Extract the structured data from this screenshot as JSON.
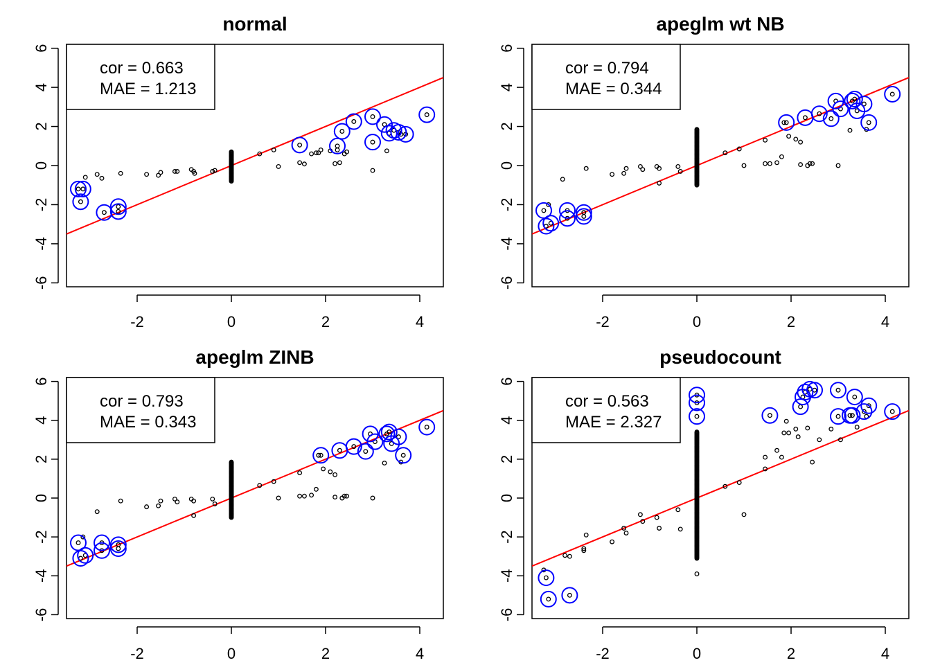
{
  "chart_data": [
    {
      "type": "scatter",
      "title": "normal",
      "xlim": [
        -3.5,
        4.5
      ],
      "ylim": [
        -6.2,
        6.2
      ],
      "xticks": [
        -2,
        0,
        2,
        4
      ],
      "yticks": [
        -6,
        -4,
        -2,
        0,
        2,
        4,
        6
      ],
      "annotation": {
        "cor": "cor = 0.663",
        "mae": "MAE = 1.213"
      },
      "fit_line": {
        "intercept": 0,
        "slope": 1,
        "color": "#ff0000"
      },
      "zero_cluster": {
        "x": 0,
        "ymin": -0.8,
        "ymax": 0.7
      },
      "points": [
        [
          -3.25,
          -1.2
        ],
        [
          -3.15,
          -1.2
        ],
        [
          -3.2,
          -1.85
        ],
        [
          -3.1,
          -0.6
        ],
        [
          -2.85,
          -0.45
        ],
        [
          -2.75,
          -0.65
        ],
        [
          -2.7,
          -2.4
        ],
        [
          -2.4,
          -2.1
        ],
        [
          -2.4,
          -2.35
        ],
        [
          -2.35,
          -0.4
        ],
        [
          -1.8,
          -0.45
        ],
        [
          -1.55,
          -0.5
        ],
        [
          -1.5,
          -0.35
        ],
        [
          -1.2,
          -0.3
        ],
        [
          -1.15,
          -0.3
        ],
        [
          -0.85,
          -0.2
        ],
        [
          -0.8,
          -0.3
        ],
        [
          -0.78,
          -0.4
        ],
        [
          -0.4,
          -0.3
        ],
        [
          -0.35,
          -0.25
        ],
        [
          0.6,
          0.6
        ],
        [
          0.9,
          0.8
        ],
        [
          1.0,
          -0.05
        ],
        [
          1.45,
          1.05
        ],
        [
          1.45,
          0.15
        ],
        [
          1.55,
          0.08
        ],
        [
          1.7,
          0.6
        ],
        [
          1.8,
          0.65
        ],
        [
          1.85,
          0.65
        ],
        [
          1.9,
          0.8
        ],
        [
          2.1,
          0.75
        ],
        [
          2.2,
          0.1
        ],
        [
          2.25,
          1.0
        ],
        [
          2.25,
          0.8
        ],
        [
          2.3,
          0.15
        ],
        [
          2.35,
          1.75
        ],
        [
          2.4,
          0.6
        ],
        [
          2.45,
          0.7
        ],
        [
          2.6,
          2.25
        ],
        [
          3.0,
          2.5
        ],
        [
          3.0,
          1.2
        ],
        [
          3.0,
          -0.25
        ],
        [
          3.25,
          2.1
        ],
        [
          3.3,
          0.75
        ],
        [
          3.35,
          1.65
        ],
        [
          3.45,
          1.8
        ],
        [
          3.55,
          1.7
        ],
        [
          3.6,
          1.6
        ],
        [
          3.7,
          1.6
        ],
        [
          4.15,
          2.6
        ]
      ],
      "highlighted": [
        [
          -3.25,
          -1.2
        ],
        [
          -3.15,
          -1.2
        ],
        [
          -3.2,
          -1.85
        ],
        [
          -2.7,
          -2.4
        ],
        [
          -2.4,
          -2.1
        ],
        [
          -2.4,
          -2.35
        ],
        [
          1.45,
          1.05
        ],
        [
          2.25,
          1.0
        ],
        [
          2.35,
          1.75
        ],
        [
          2.6,
          2.25
        ],
        [
          3.0,
          2.5
        ],
        [
          3.0,
          1.2
        ],
        [
          3.25,
          2.1
        ],
        [
          3.35,
          1.65
        ],
        [
          3.45,
          1.8
        ],
        [
          3.55,
          1.7
        ],
        [
          3.7,
          1.6
        ],
        [
          4.15,
          2.6
        ]
      ]
    },
    {
      "type": "scatter",
      "title": "apeglm wt NB",
      "xlim": [
        -3.5,
        4.5
      ],
      "ylim": [
        -6.2,
        6.2
      ],
      "xticks": [
        -2,
        0,
        2,
        4
      ],
      "yticks": [
        -6,
        -4,
        -2,
        0,
        2,
        4,
        6
      ],
      "annotation": {
        "cor": "cor = 0.794",
        "mae": "MAE = 0.344"
      },
      "fit_line": {
        "intercept": 0,
        "slope": 1,
        "color": "#ff0000"
      },
      "zero_cluster": {
        "x": 0,
        "ymin": -1.0,
        "ymax": 1.85
      },
      "points": [
        [
          -3.25,
          -2.3
        ],
        [
          -3.15,
          -2.0
        ],
        [
          -3.2,
          -3.1
        ],
        [
          -3.1,
          -2.95
        ],
        [
          -2.85,
          -0.7
        ],
        [
          -2.75,
          -2.3
        ],
        [
          -2.75,
          -2.7
        ],
        [
          -2.4,
          -2.4
        ],
        [
          -2.4,
          -2.6
        ],
        [
          -2.35,
          -0.15
        ],
        [
          -1.8,
          -0.45
        ],
        [
          -1.55,
          -0.4
        ],
        [
          -1.5,
          -0.15
        ],
        [
          -1.2,
          -0.05
        ],
        [
          -1.15,
          -0.2
        ],
        [
          -0.85,
          -0.05
        ],
        [
          -0.8,
          -0.15
        ],
        [
          -0.8,
          -0.9
        ],
        [
          -0.4,
          -0.05
        ],
        [
          -0.35,
          -0.3
        ],
        [
          0.6,
          0.65
        ],
        [
          0.9,
          0.85
        ],
        [
          1.0,
          0.0
        ],
        [
          1.45,
          1.3
        ],
        [
          1.45,
          0.1
        ],
        [
          1.55,
          0.1
        ],
        [
          1.7,
          0.15
        ],
        [
          1.8,
          0.45
        ],
        [
          1.85,
          2.2
        ],
        [
          1.9,
          2.2
        ],
        [
          1.95,
          1.5
        ],
        [
          2.1,
          1.35
        ],
        [
          2.2,
          1.2
        ],
        [
          2.2,
          0.05
        ],
        [
          2.3,
          2.45
        ],
        [
          2.35,
          0.0
        ],
        [
          2.4,
          0.1
        ],
        [
          2.45,
          0.1
        ],
        [
          2.6,
          2.65
        ],
        [
          2.85,
          2.4
        ],
        [
          2.95,
          3.3
        ],
        [
          3.0,
          0.0
        ],
        [
          3.05,
          2.9
        ],
        [
          3.25,
          1.8
        ],
        [
          3.3,
          3.3
        ],
        [
          3.35,
          3.4
        ],
        [
          3.4,
          2.8
        ],
        [
          3.55,
          3.15
        ],
        [
          3.6,
          1.85
        ],
        [
          3.65,
          2.2
        ],
        [
          4.15,
          3.65
        ]
      ],
      "highlighted": [
        [
          -3.25,
          -2.3
        ],
        [
          -3.2,
          -3.1
        ],
        [
          -3.1,
          -2.95
        ],
        [
          -2.75,
          -2.3
        ],
        [
          -2.75,
          -2.7
        ],
        [
          -2.4,
          -2.4
        ],
        [
          -2.4,
          -2.6
        ],
        [
          1.9,
          2.2
        ],
        [
          2.3,
          2.45
        ],
        [
          2.6,
          2.65
        ],
        [
          2.85,
          2.4
        ],
        [
          2.95,
          3.3
        ],
        [
          3.05,
          2.9
        ],
        [
          3.3,
          3.3
        ],
        [
          3.35,
          3.4
        ],
        [
          3.4,
          2.8
        ],
        [
          3.55,
          3.15
        ],
        [
          3.65,
          2.2
        ],
        [
          4.15,
          3.65
        ]
      ]
    },
    {
      "type": "scatter",
      "title": "apeglm ZINB",
      "xlim": [
        -3.5,
        4.5
      ],
      "ylim": [
        -6.2,
        6.2
      ],
      "xticks": [
        -2,
        0,
        2,
        4
      ],
      "yticks": [
        -6,
        -4,
        -2,
        0,
        2,
        4,
        6
      ],
      "annotation": {
        "cor": "cor = 0.793",
        "mae": "MAE = 0.343"
      },
      "fit_line": {
        "intercept": 0,
        "slope": 1,
        "color": "#ff0000"
      },
      "zero_cluster": {
        "x": 0,
        "ymin": -1.0,
        "ymax": 1.85
      },
      "points": [
        [
          -3.25,
          -2.3
        ],
        [
          -3.15,
          -2.0
        ],
        [
          -3.2,
          -3.1
        ],
        [
          -3.1,
          -2.95
        ],
        [
          -2.85,
          -0.7
        ],
        [
          -2.75,
          -2.3
        ],
        [
          -2.75,
          -2.7
        ],
        [
          -2.4,
          -2.4
        ],
        [
          -2.4,
          -2.6
        ],
        [
          -2.35,
          -0.15
        ],
        [
          -1.8,
          -0.45
        ],
        [
          -1.55,
          -0.4
        ],
        [
          -1.5,
          -0.15
        ],
        [
          -1.2,
          -0.05
        ],
        [
          -1.15,
          -0.2
        ],
        [
          -0.85,
          -0.05
        ],
        [
          -0.8,
          -0.15
        ],
        [
          -0.8,
          -0.9
        ],
        [
          -0.4,
          -0.05
        ],
        [
          -0.35,
          -0.3
        ],
        [
          0.6,
          0.65
        ],
        [
          0.9,
          0.85
        ],
        [
          1.0,
          0.0
        ],
        [
          1.45,
          1.3
        ],
        [
          1.45,
          0.1
        ],
        [
          1.55,
          0.1
        ],
        [
          1.7,
          0.15
        ],
        [
          1.8,
          0.45
        ],
        [
          1.85,
          2.2
        ],
        [
          1.9,
          2.2
        ],
        [
          1.95,
          1.5
        ],
        [
          2.1,
          1.35
        ],
        [
          2.2,
          1.2
        ],
        [
          2.2,
          0.05
        ],
        [
          2.3,
          2.45
        ],
        [
          2.35,
          0.0
        ],
        [
          2.4,
          0.1
        ],
        [
          2.45,
          0.1
        ],
        [
          2.6,
          2.65
        ],
        [
          2.85,
          2.4
        ],
        [
          2.95,
          3.3
        ],
        [
          3.0,
          0.0
        ],
        [
          3.05,
          2.9
        ],
        [
          3.25,
          1.8
        ],
        [
          3.3,
          3.3
        ],
        [
          3.35,
          3.4
        ],
        [
          3.4,
          2.8
        ],
        [
          3.55,
          3.15
        ],
        [
          3.6,
          1.85
        ],
        [
          3.65,
          2.2
        ],
        [
          4.15,
          3.65
        ]
      ],
      "highlighted": [
        [
          -3.25,
          -2.3
        ],
        [
          -3.2,
          -3.1
        ],
        [
          -3.1,
          -2.95
        ],
        [
          -2.75,
          -2.3
        ],
        [
          -2.75,
          -2.7
        ],
        [
          -2.4,
          -2.4
        ],
        [
          -2.4,
          -2.6
        ],
        [
          1.9,
          2.2
        ],
        [
          2.3,
          2.45
        ],
        [
          2.6,
          2.65
        ],
        [
          2.85,
          2.4
        ],
        [
          2.95,
          3.3
        ],
        [
          3.05,
          2.9
        ],
        [
          3.3,
          3.3
        ],
        [
          3.35,
          3.4
        ],
        [
          3.4,
          2.8
        ],
        [
          3.55,
          3.15
        ],
        [
          3.65,
          2.2
        ],
        [
          4.15,
          3.65
        ]
      ]
    },
    {
      "type": "scatter",
      "title": "pseudocount",
      "xlim": [
        -3.5,
        4.5
      ],
      "ylim": [
        -6.2,
        6.2
      ],
      "xticks": [
        -2,
        0,
        2,
        4
      ],
      "yticks": [
        -6,
        -4,
        -2,
        0,
        2,
        4,
        6
      ],
      "annotation": {
        "cor": "cor = 0.563",
        "mae": "MAE = 2.327"
      },
      "fit_line": {
        "intercept": 0,
        "slope": 1,
        "color": "#ff0000"
      },
      "zero_cluster": {
        "x": 0,
        "ymin": -3.1,
        "ymax": 3.4
      },
      "points": [
        [
          0,
          5.3
        ],
        [
          0,
          4.9
        ],
        [
          0,
          4.2
        ],
        [
          0,
          -3.9
        ],
        [
          -3.2,
          -4.1
        ],
        [
          -3.25,
          -3.7
        ],
        [
          -3.15,
          -5.2
        ],
        [
          -2.8,
          -2.95
        ],
        [
          -2.7,
          -3.0
        ],
        [
          -2.7,
          -5.0
        ],
        [
          -2.4,
          -2.6
        ],
        [
          -2.4,
          -2.7
        ],
        [
          -2.35,
          -1.9
        ],
        [
          -1.8,
          -2.25
        ],
        [
          -1.55,
          -1.55
        ],
        [
          -1.5,
          -1.8
        ],
        [
          -1.2,
          -0.85
        ],
        [
          -1.15,
          -1.2
        ],
        [
          -0.85,
          -1.0
        ],
        [
          -0.8,
          -1.55
        ],
        [
          -0.4,
          -0.6
        ],
        [
          -0.35,
          -1.6
        ],
        [
          0.6,
          0.6
        ],
        [
          0.9,
          0.8
        ],
        [
          1.0,
          -0.85
        ],
        [
          1.45,
          1.5
        ],
        [
          1.45,
          2.1
        ],
        [
          1.55,
          4.25
        ],
        [
          1.7,
          2.45
        ],
        [
          1.8,
          2.1
        ],
        [
          1.85,
          3.35
        ],
        [
          1.9,
          3.95
        ],
        [
          1.95,
          3.35
        ],
        [
          2.1,
          3.55
        ],
        [
          2.15,
          3.15
        ],
        [
          2.2,
          4.7
        ],
        [
          2.25,
          5.2
        ],
        [
          2.3,
          5.45
        ],
        [
          2.35,
          3.6
        ],
        [
          2.4,
          5.6
        ],
        [
          2.45,
          1.85
        ],
        [
          2.5,
          5.55
        ],
        [
          2.6,
          3.0
        ],
        [
          2.85,
          3.55
        ],
        [
          3.0,
          5.55
        ],
        [
          3.0,
          4.2
        ],
        [
          3.05,
          3.0
        ],
        [
          3.25,
          4.25
        ],
        [
          3.3,
          4.25
        ],
        [
          3.35,
          5.2
        ],
        [
          3.4,
          3.65
        ],
        [
          3.55,
          4.45
        ],
        [
          3.6,
          4.2
        ],
        [
          3.65,
          4.75
        ],
        [
          4.15,
          4.45
        ]
      ],
      "highlighted": [
        [
          0,
          5.3
        ],
        [
          0,
          4.9
        ],
        [
          0,
          4.2
        ],
        [
          -3.2,
          -4.1
        ],
        [
          -3.15,
          -5.2
        ],
        [
          -2.7,
          -5.0
        ],
        [
          1.55,
          4.25
        ],
        [
          2.2,
          4.7
        ],
        [
          2.25,
          5.2
        ],
        [
          2.3,
          5.45
        ],
        [
          2.4,
          5.6
        ],
        [
          2.5,
          5.55
        ],
        [
          3.0,
          5.55
        ],
        [
          3.0,
          4.2
        ],
        [
          3.25,
          4.25
        ],
        [
          3.3,
          4.25
        ],
        [
          3.35,
          5.2
        ],
        [
          3.55,
          4.45
        ],
        [
          3.65,
          4.75
        ],
        [
          4.15,
          4.45
        ]
      ]
    }
  ]
}
